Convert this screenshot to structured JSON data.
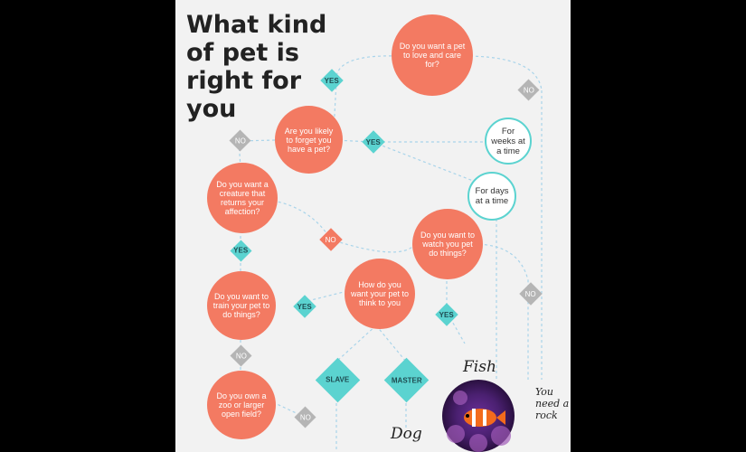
{
  "title": "What kind of pet is right for you",
  "nodes": {
    "love": "Do you want a pet to love and care for?",
    "forget": "Are you likely to forget you have a pet?",
    "weeks": "For weeks at a time",
    "days": "For days at a time",
    "creature": "Do you want a creature that returns your affection?",
    "watch": "Do you want to watch you pet do things?",
    "think": "How do you want your pet to think to you",
    "train": "Do you want to train your pet to do things?",
    "zoo": "Do you own a zoo or larger open field?"
  },
  "decisions": {
    "yes": "YES",
    "no": "NO",
    "slave": "SLAVE",
    "master": "MASTER"
  },
  "handwritten": {
    "fish": "Fish",
    "rock": "You need a rock",
    "dog": "Dog"
  },
  "colors": {
    "circle": "#f37a62",
    "yes": "#5bd3d0",
    "no": "#b5b5b5",
    "line": "#a9d4ea"
  }
}
